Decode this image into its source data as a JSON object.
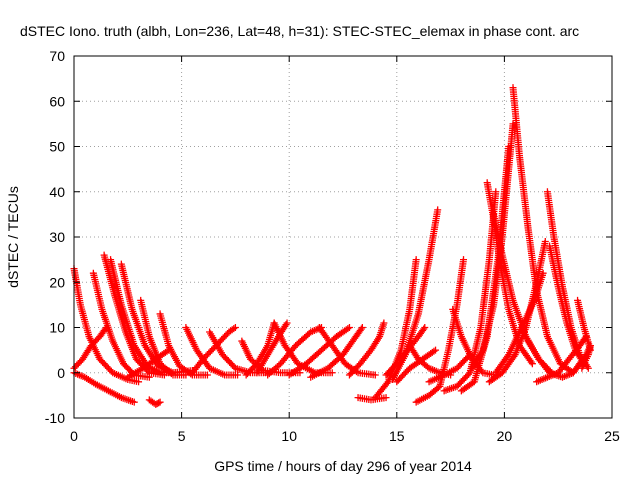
{
  "chart_data": {
    "type": "scatter",
    "title": "dSTEC Iono. truth (albh, Lon=236, Lat=48, h=31): STEC-STEC_elemax in phase cont. arc",
    "xlabel": "GPS time / hours of day 296 of year 2014",
    "ylabel": "dSTEC  / TECUs",
    "xlim": [
      0,
      25
    ],
    "ylim": [
      -10,
      70
    ],
    "xticks": [
      0,
      5,
      10,
      15,
      20,
      25
    ],
    "yticks": [
      -10,
      0,
      10,
      20,
      30,
      40,
      50,
      60,
      70
    ],
    "grid": true,
    "marker": "+",
    "color": "#ff0000",
    "series": [
      {
        "points": [
          [
            0.0,
            23
          ],
          [
            0.3,
            15
          ],
          [
            0.7,
            8
          ],
          [
            1.2,
            3
          ],
          [
            1.8,
            0
          ],
          [
            2.5,
            -1.5
          ],
          [
            3.0,
            -2
          ]
        ]
      },
      {
        "points": [
          [
            0.0,
            0
          ],
          [
            0.5,
            -1
          ],
          [
            1.0,
            -2.5
          ],
          [
            1.6,
            -4
          ],
          [
            2.2,
            -5.5
          ],
          [
            2.8,
            -6.5
          ]
        ]
      },
      {
        "points": [
          [
            0.0,
            1
          ],
          [
            0.4,
            3
          ],
          [
            0.8,
            6
          ],
          [
            1.2,
            8
          ],
          [
            1.5,
            10
          ]
        ]
      },
      {
        "points": [
          [
            0.9,
            22
          ],
          [
            1.3,
            14
          ],
          [
            1.8,
            7
          ],
          [
            2.3,
            2
          ],
          [
            2.8,
            -0.5
          ],
          [
            3.5,
            -1
          ]
        ]
      },
      {
        "points": [
          [
            1.4,
            26
          ],
          [
            1.9,
            17
          ],
          [
            2.4,
            9
          ],
          [
            2.9,
            3
          ],
          [
            3.5,
            0
          ],
          [
            4.2,
            -0.5
          ]
        ]
      },
      {
        "points": [
          [
            1.7,
            25
          ],
          [
            2.2,
            15
          ],
          [
            2.8,
            6
          ],
          [
            3.4,
            1.5
          ],
          [
            4.0,
            0
          ],
          [
            4.8,
            0
          ]
        ]
      },
      {
        "points": [
          [
            2.2,
            24
          ],
          [
            2.7,
            14
          ],
          [
            3.3,
            6
          ],
          [
            3.9,
            1.5
          ],
          [
            4.6,
            0
          ],
          [
            5.5,
            0.5
          ]
        ]
      },
      {
        "points": [
          [
            3.1,
            16
          ],
          [
            3.5,
            8
          ],
          [
            4.0,
            2
          ],
          [
            4.6,
            -0.5
          ],
          [
            5.2,
            -0.5
          ]
        ]
      },
      {
        "points": [
          [
            3.5,
            -6
          ],
          [
            3.8,
            -7
          ],
          [
            4.0,
            -6.5
          ]
        ]
      },
      {
        "points": [
          [
            4.0,
            13
          ],
          [
            4.4,
            6
          ],
          [
            4.9,
            1.5
          ],
          [
            5.5,
            -0.5
          ],
          [
            6.2,
            -0.5
          ]
        ]
      },
      {
        "points": [
          [
            2.5,
            -1
          ],
          [
            3.2,
            1
          ],
          [
            3.8,
            3
          ],
          [
            4.4,
            5
          ]
        ]
      },
      {
        "points": [
          [
            5.2,
            10
          ],
          [
            5.7,
            5
          ],
          [
            6.3,
            1
          ],
          [
            7.0,
            -0.5
          ],
          [
            7.6,
            -0.5
          ]
        ]
      },
      {
        "points": [
          [
            6.3,
            9
          ],
          [
            6.9,
            4
          ],
          [
            7.5,
            1
          ],
          [
            8.2,
            0
          ],
          [
            8.9,
            0
          ]
        ]
      },
      {
        "points": [
          [
            5.5,
            0
          ],
          [
            6.0,
            3
          ],
          [
            6.6,
            6
          ],
          [
            7.2,
            9
          ],
          [
            7.5,
            10
          ]
        ]
      },
      {
        "points": [
          [
            7.8,
            7
          ],
          [
            8.2,
            3
          ],
          [
            8.8,
            0.5
          ],
          [
            9.6,
            0
          ],
          [
            10.5,
            0
          ]
        ]
      },
      {
        "points": [
          [
            8.0,
            -0.5
          ],
          [
            8.5,
            2
          ],
          [
            9.0,
            6
          ],
          [
            9.3,
            11
          ]
        ]
      },
      {
        "points": [
          [
            8.5,
            0
          ],
          [
            9.0,
            4
          ],
          [
            9.5,
            8
          ],
          [
            9.9,
            11
          ]
        ]
      },
      {
        "points": [
          [
            9.3,
            11
          ],
          [
            9.8,
            6
          ],
          [
            10.4,
            2
          ],
          [
            11.2,
            0
          ],
          [
            12.0,
            0
          ]
        ]
      },
      {
        "points": [
          [
            9.0,
            -0.5
          ],
          [
            9.6,
            2
          ],
          [
            10.3,
            6
          ],
          [
            11.0,
            9
          ],
          [
            11.5,
            10
          ]
        ]
      },
      {
        "points": [
          [
            10.0,
            -0.5
          ],
          [
            10.8,
            2
          ],
          [
            11.5,
            5
          ],
          [
            12.2,
            8
          ],
          [
            12.8,
            10
          ]
        ]
      },
      {
        "points": [
          [
            11.4,
            10
          ],
          [
            12.0,
            6
          ],
          [
            12.6,
            2
          ],
          [
            13.2,
            0
          ],
          [
            14.0,
            -0.5
          ]
        ]
      },
      {
        "points": [
          [
            11.0,
            -1
          ],
          [
            11.8,
            1
          ],
          [
            12.5,
            4
          ],
          [
            13.1,
            8
          ],
          [
            13.4,
            10
          ]
        ]
      },
      {
        "points": [
          [
            12.8,
            -0.5
          ],
          [
            13.3,
            2
          ],
          [
            13.8,
            5
          ],
          [
            14.2,
            8
          ],
          [
            14.4,
            11
          ]
        ]
      },
      {
        "points": [
          [
            13.2,
            -5.5
          ],
          [
            13.8,
            -6
          ],
          [
            14.5,
            -5.5
          ]
        ]
      },
      {
        "points": [
          [
            14.0,
            -5.5
          ],
          [
            14.6,
            -2
          ],
          [
            15.2,
            5
          ],
          [
            15.6,
            14
          ],
          [
            15.9,
            25
          ]
        ]
      },
      {
        "points": [
          [
            14.5,
            -0.5
          ],
          [
            15.0,
            2
          ],
          [
            15.5,
            5
          ],
          [
            16.0,
            8
          ],
          [
            16.3,
            10
          ]
        ]
      },
      {
        "points": [
          [
            14.8,
            -1.5
          ],
          [
            15.4,
            4
          ],
          [
            16.0,
            13
          ],
          [
            16.5,
            25
          ],
          [
            16.9,
            36
          ]
        ]
      },
      {
        "points": [
          [
            15.0,
            -2
          ],
          [
            15.6,
            1
          ],
          [
            16.2,
            3
          ],
          [
            16.8,
            5
          ]
        ]
      },
      {
        "points": [
          [
            15.6,
            6
          ],
          [
            16.0,
            3
          ],
          [
            16.5,
            1
          ],
          [
            17.0,
            0
          ],
          [
            17.5,
            -0.5
          ]
        ]
      },
      {
        "points": [
          [
            15.9,
            -6.5
          ],
          [
            16.5,
            -5
          ],
          [
            17.0,
            -3
          ],
          [
            17.4,
            5
          ],
          [
            17.8,
            15
          ],
          [
            18.1,
            25
          ]
        ]
      },
      {
        "points": [
          [
            16.5,
            -2
          ],
          [
            17.2,
            -0.5
          ],
          [
            17.8,
            1
          ],
          [
            18.4,
            4
          ]
        ]
      },
      {
        "points": [
          [
            17.2,
            -4
          ],
          [
            17.8,
            -3
          ],
          [
            18.4,
            0
          ],
          [
            18.9,
            10
          ],
          [
            19.3,
            25
          ],
          [
            19.6,
            40
          ]
        ]
      },
      {
        "points": [
          [
            17.6,
            14
          ],
          [
            18.0,
            8
          ],
          [
            18.5,
            3
          ],
          [
            19.0,
            0
          ],
          [
            19.5,
            -0.5
          ]
        ]
      },
      {
        "points": [
          [
            18.0,
            -4
          ],
          [
            18.6,
            -2
          ],
          [
            19.2,
            8
          ],
          [
            19.7,
            25
          ],
          [
            20.0,
            40
          ],
          [
            20.2,
            50
          ]
        ]
      },
      {
        "points": [
          [
            18.5,
            1
          ],
          [
            19.0,
            5
          ],
          [
            19.5,
            15
          ],
          [
            19.9,
            30
          ],
          [
            20.2,
            45
          ],
          [
            20.4,
            55
          ]
        ]
      },
      {
        "points": [
          [
            19.2,
            42
          ],
          [
            19.5,
            34
          ],
          [
            19.8,
            24
          ],
          [
            20.2,
            14
          ],
          [
            20.7,
            6
          ],
          [
            21.3,
            2
          ]
        ]
      },
      {
        "points": [
          [
            19.5,
            35
          ],
          [
            19.9,
            26
          ],
          [
            20.4,
            16
          ],
          [
            21.0,
            8
          ],
          [
            21.6,
            3
          ],
          [
            22.2,
            0
          ]
        ]
      },
      {
        "points": [
          [
            20.4,
            63
          ],
          [
            20.7,
            48
          ],
          [
            21.1,
            32
          ],
          [
            21.5,
            18
          ],
          [
            22.0,
            8
          ],
          [
            22.6,
            2
          ],
          [
            23.2,
            0
          ]
        ]
      },
      {
        "points": [
          [
            19.3,
            -2
          ],
          [
            19.9,
            0
          ],
          [
            20.5,
            4
          ],
          [
            21.0,
            10
          ],
          [
            21.5,
            20
          ],
          [
            21.9,
            29
          ]
        ]
      },
      {
        "points": [
          [
            19.6,
            0
          ],
          [
            20.2,
            4
          ],
          [
            20.8,
            10
          ],
          [
            21.4,
            16
          ],
          [
            21.8,
            22
          ]
        ]
      },
      {
        "points": [
          [
            21.1,
            7
          ],
          [
            21.6,
            3
          ],
          [
            22.1,
            0
          ],
          [
            22.7,
            -1
          ],
          [
            23.2,
            0
          ]
        ]
      },
      {
        "points": [
          [
            22.0,
            40
          ],
          [
            22.3,
            30
          ],
          [
            22.7,
            19
          ],
          [
            23.1,
            10
          ],
          [
            23.5,
            4
          ],
          [
            23.9,
            1
          ]
        ]
      },
      {
        "points": [
          [
            22.1,
            28
          ],
          [
            22.5,
            19
          ],
          [
            22.9,
            11
          ],
          [
            23.3,
            5
          ],
          [
            23.7,
            2
          ]
        ]
      },
      {
        "points": [
          [
            21.5,
            -2
          ],
          [
            22.0,
            -1
          ],
          [
            22.5,
            0
          ],
          [
            23.0,
            3
          ],
          [
            23.5,
            6
          ],
          [
            23.8,
            8
          ]
        ]
      },
      {
        "points": [
          [
            23.4,
            16
          ],
          [
            23.7,
            10
          ],
          [
            24.0,
            5
          ]
        ]
      },
      {
        "points": [
          [
            23.2,
            0
          ],
          [
            23.5,
            2
          ],
          [
            23.8,
            4
          ],
          [
            24.0,
            6
          ]
        ]
      },
      {
        "points": [
          [
            23.6,
            1
          ],
          [
            23.9,
            4
          ],
          [
            24.0,
            6
          ]
        ]
      }
    ]
  }
}
